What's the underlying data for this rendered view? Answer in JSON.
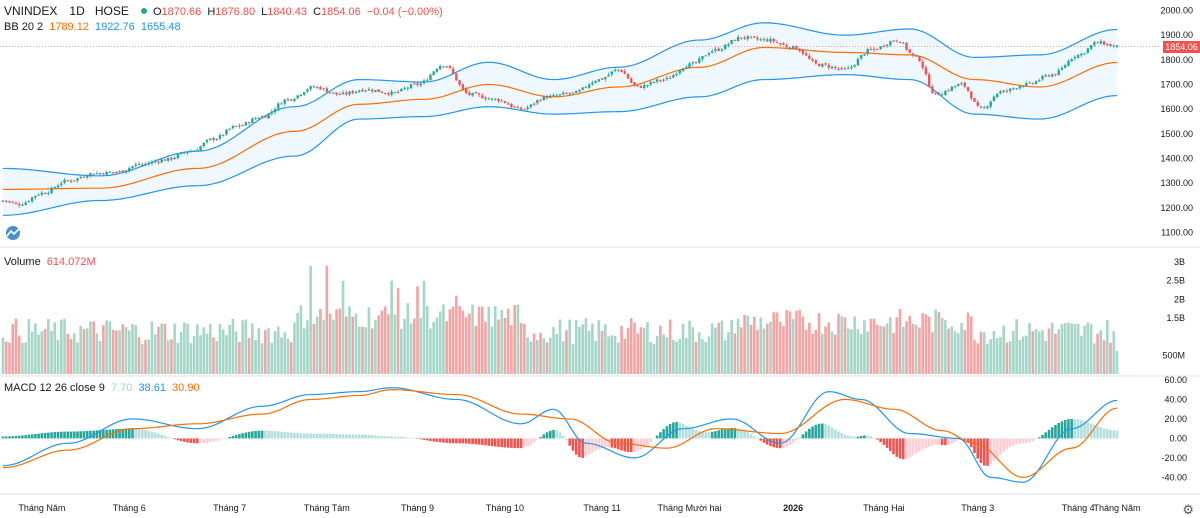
{
  "header": {
    "symbol": "VNINDEX",
    "interval": "1D",
    "exchange": "HOSE",
    "ohlc": {
      "o_label": "O",
      "o": "1870.66",
      "h_label": "H",
      "h": "1876.80",
      "l_label": "L",
      "l": "1840.43",
      "c_label": "C",
      "c": "1854.06",
      "change": "−0.04 (−0.00%)"
    }
  },
  "bb": {
    "label": "BB 20 2",
    "basis": "1789.12",
    "upper": "1922.76",
    "lower": "1655.48"
  },
  "volume": {
    "label": "Volume",
    "value": "614.072M"
  },
  "macd": {
    "label": "MACD 12 26 close 9",
    "hist": "7.70",
    "macd": "38.61",
    "signal": "30.90"
  },
  "last_price_tag": "1854.06",
  "colors": {
    "up": "#26a69a",
    "down": "#ef5350",
    "bb_band": "#2196f3",
    "bb_basis": "#ff6d00",
    "macd_line": "#2196f3",
    "signal_line": "#ff6d00",
    "vol_up": "#a5d6c7",
    "vol_down": "#f3a5a5"
  },
  "chart_data": [
    {
      "type": "candlestick",
      "title": "VNINDEX 1D HOSE",
      "y_ticks": [
        "2000.00",
        "1900.00",
        "1800.00",
        "1700.00",
        "1600.00",
        "1500.00",
        "1400.00",
        "1300.00",
        "1200.00",
        "1100.00"
      ],
      "ylim": [
        1070,
        2010
      ],
      "x_ticks": [
        "Tháng Năm",
        "Tháng 6",
        "Tháng 7",
        "Tháng Tám",
        "Tháng 9",
        "Tháng 10",
        "Tháng 11",
        "Tháng Mười hai",
        "2026",
        "Tháng Hai",
        "Tháng 3",
        "Tháng 4",
        "Tháng Năm"
      ],
      "close_anchors": [
        [
          0,
          1230
        ],
        [
          5,
          1215
        ],
        [
          12,
          1260
        ],
        [
          20,
          1310
        ],
        [
          28,
          1340
        ],
        [
          35,
          1345
        ],
        [
          42,
          1375
        ],
        [
          50,
          1395
        ],
        [
          58,
          1430
        ],
        [
          65,
          1480
        ],
        [
          72,
          1530
        ],
        [
          80,
          1570
        ],
        [
          88,
          1640
        ],
        [
          96,
          1690
        ],
        [
          104,
          1660
        ],
        [
          112,
          1680
        ],
        [
          120,
          1665
        ],
        [
          128,
          1700
        ],
        [
          136,
          1780
        ],
        [
          144,
          1660
        ],
        [
          152,
          1640
        ],
        [
          160,
          1600
        ],
        [
          168,
          1650
        ],
        [
          176,
          1665
        ],
        [
          184,
          1720
        ],
        [
          190,
          1760
        ],
        [
          196,
          1690
        ],
        [
          204,
          1720
        ],
        [
          212,
          1780
        ],
        [
          220,
          1840
        ],
        [
          228,
          1890
        ],
        [
          236,
          1880
        ],
        [
          244,
          1850
        ],
        [
          252,
          1780
        ],
        [
          260,
          1760
        ],
        [
          268,
          1840
        ],
        [
          276,
          1880
        ],
        [
          282,
          1810
        ],
        [
          288,
          1660
        ],
        [
          296,
          1700
        ],
        [
          302,
          1600
        ],
        [
          308,
          1670
        ],
        [
          316,
          1700
        ],
        [
          324,
          1740
        ],
        [
          332,
          1820
        ],
        [
          338,
          1870
        ],
        [
          344,
          1854
        ]
      ],
      "bb_upper_anchors": [
        [
          0,
          1360
        ],
        [
          30,
          1330
        ],
        [
          60,
          1430
        ],
        [
          90,
          1610
        ],
        [
          110,
          1720
        ],
        [
          130,
          1710
        ],
        [
          150,
          1790
        ],
        [
          170,
          1720
        ],
        [
          190,
          1770
        ],
        [
          215,
          1880
        ],
        [
          235,
          1950
        ],
        [
          260,
          1900
        ],
        [
          280,
          1925
        ],
        [
          300,
          1810
        ],
        [
          320,
          1820
        ],
        [
          344,
          1923
        ]
      ],
      "bb_basis_anchors": [
        [
          0,
          1275
        ],
        [
          30,
          1280
        ],
        [
          60,
          1360
        ],
        [
          90,
          1510
        ],
        [
          110,
          1620
        ],
        [
          130,
          1640
        ],
        [
          150,
          1700
        ],
        [
          170,
          1650
        ],
        [
          190,
          1690
        ],
        [
          215,
          1770
        ],
        [
          235,
          1850
        ],
        [
          260,
          1830
        ],
        [
          280,
          1820
        ],
        [
          300,
          1720
        ],
        [
          320,
          1690
        ],
        [
          344,
          1789
        ]
      ],
      "bb_lower_anchors": [
        [
          0,
          1170
        ],
        [
          30,
          1230
        ],
        [
          60,
          1290
        ],
        [
          90,
          1410
        ],
        [
          110,
          1560
        ],
        [
          130,
          1570
        ],
        [
          150,
          1610
        ],
        [
          170,
          1580
        ],
        [
          190,
          1590
        ],
        [
          215,
          1650
        ],
        [
          235,
          1720
        ],
        [
          260,
          1740
        ],
        [
          280,
          1720
        ],
        [
          300,
          1580
        ],
        [
          320,
          1560
        ],
        [
          344,
          1655
        ]
      ]
    },
    {
      "type": "bar",
      "title": "Volume",
      "y_ticks": [
        "3B",
        "2.5B",
        "2B",
        "1.5B",
        "500M"
      ],
      "ylim": [
        0,
        3000
      ],
      "last_value_m": 614.072,
      "spikes": [
        [
          95,
          2900
        ],
        [
          100,
          2900
        ],
        [
          105,
          2500
        ],
        [
          120,
          2500
        ],
        [
          122,
          2300
        ],
        [
          128,
          2350
        ],
        [
          130,
          2500
        ],
        [
          140,
          2100
        ],
        [
          150,
          1800
        ],
        [
          240,
          1400
        ],
        [
          285,
          1600
        ],
        [
          290,
          1500
        ]
      ]
    },
    {
      "type": "macd",
      "title": "MACD 12 26 close 9",
      "y_ticks": [
        "60.00",
        "40.00",
        "20.00",
        "0.00",
        "-20.00",
        "-40.00"
      ],
      "ylim": [
        -55,
        62
      ],
      "macd_anchors": [
        [
          0,
          -28
        ],
        [
          20,
          -5
        ],
        [
          40,
          20
        ],
        [
          60,
          10
        ],
        [
          80,
          33
        ],
        [
          95,
          45
        ],
        [
          110,
          48
        ],
        [
          120,
          52
        ],
        [
          140,
          40
        ],
        [
          160,
          15
        ],
        [
          170,
          30
        ],
        [
          180,
          -5
        ],
        [
          195,
          -20
        ],
        [
          210,
          10
        ],
        [
          225,
          20
        ],
        [
          240,
          -5
        ],
        [
          255,
          48
        ],
        [
          265,
          40
        ],
        [
          280,
          5
        ],
        [
          295,
          0
        ],
        [
          305,
          -40
        ],
        [
          315,
          -45
        ],
        [
          330,
          10
        ],
        [
          344,
          39
        ]
      ],
      "signal_anchors": [
        [
          0,
          -30
        ],
        [
          20,
          -12
        ],
        [
          40,
          10
        ],
        [
          60,
          15
        ],
        [
          80,
          25
        ],
        [
          95,
          40
        ],
        [
          110,
          44
        ],
        [
          120,
          50
        ],
        [
          140,
          45
        ],
        [
          160,
          25
        ],
        [
          175,
          20
        ],
        [
          190,
          -5
        ],
        [
          205,
          -10
        ],
        [
          220,
          10
        ],
        [
          240,
          5
        ],
        [
          260,
          40
        ],
        [
          275,
          30
        ],
        [
          290,
          8
        ],
        [
          300,
          -5
        ],
        [
          315,
          -40
        ],
        [
          330,
          -10
        ],
        [
          344,
          31
        ]
      ],
      "last_hist": 7.7
    }
  ]
}
